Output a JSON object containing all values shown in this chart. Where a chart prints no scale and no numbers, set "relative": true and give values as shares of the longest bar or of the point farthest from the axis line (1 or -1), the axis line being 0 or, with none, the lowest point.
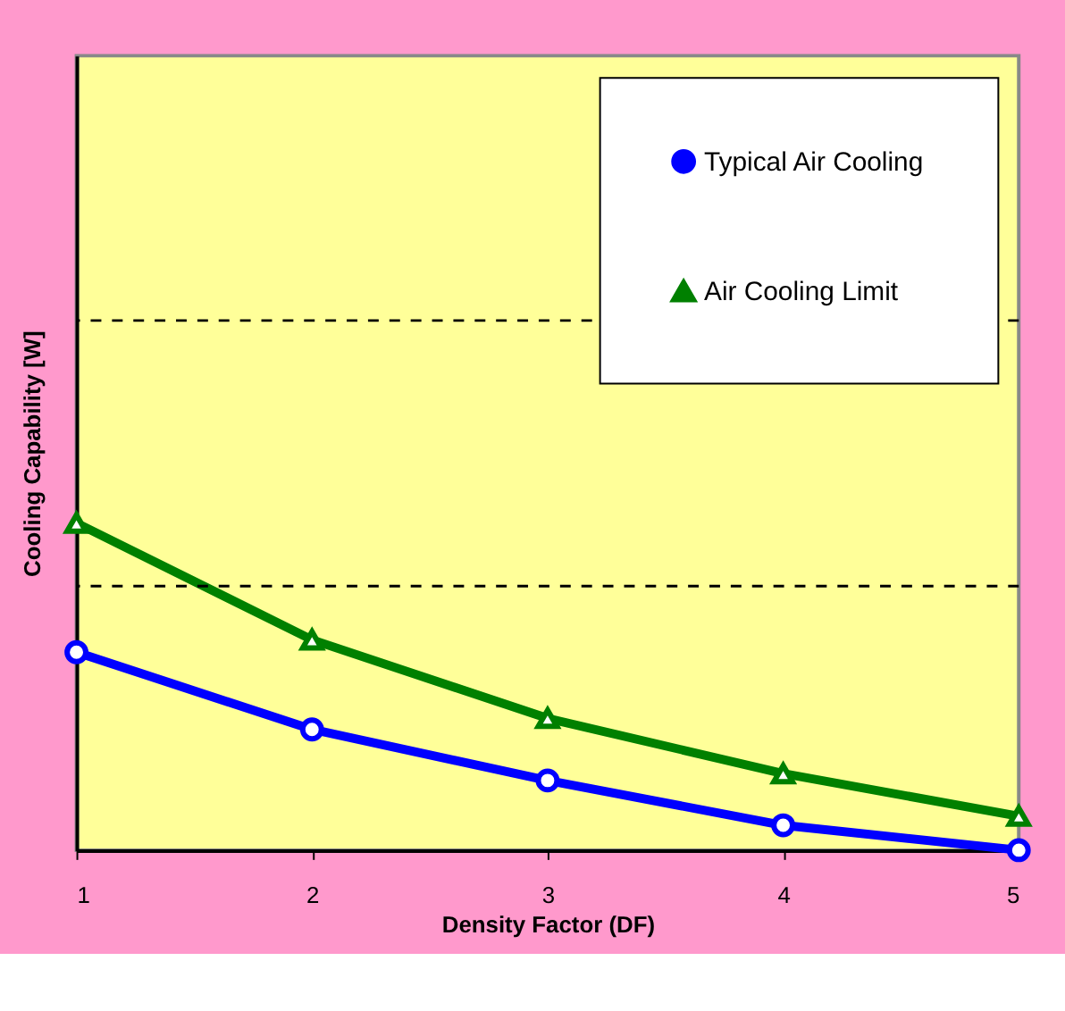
{
  "chart_data": {
    "type": "line",
    "relative": true,
    "xlabel": "Density Factor (DF)",
    "ylabel": "Cooling Capability [W]",
    "x": [
      1,
      2,
      3,
      4,
      5
    ],
    "xlim": [
      1,
      5
    ],
    "xticks": [
      1,
      2,
      3,
      4,
      5
    ],
    "series": [
      {
        "name": "Typical Air Cooling",
        "color": "#0000ff",
        "marker": "circle",
        "values": [
          0.605,
          0.369,
          0.213,
          0.076,
          0
        ]
      },
      {
        "name": "Air Cooling Limit",
        "color": "#008000",
        "marker": "triangle",
        "values": [
          1,
          0.643,
          0.403,
          0.234,
          0.104
        ]
      }
    ],
    "ref_lines": [
      {
        "axis": "y",
        "value": 0.807,
        "color": "#000000",
        "line_style": "dashed"
      },
      {
        "axis": "y",
        "value": 1.619,
        "color": "#000000",
        "line_style": "dashed"
      }
    ],
    "legend": "top right",
    "line_style": "solid"
  }
}
